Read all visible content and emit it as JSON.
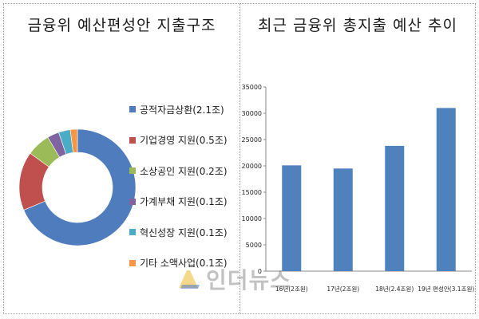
{
  "chart_data": [
    {
      "type": "pie",
      "title": "금융위 예산편성안 지출구조",
      "legend_position": "right",
      "labels": [
        "공적자금상환(2.1조)",
        "기업경영 지원(0.5조)",
        "소상공인 지원(0.2조)",
        "가계부채 지원(0.1조)",
        "혁신성장 지원(0.1조)",
        "기타 소액사업(0.1조)"
      ],
      "values": [
        2.1,
        0.5,
        0.2,
        0.1,
        0.1,
        0.06
      ],
      "colors": [
        "#4f7cbd",
        "#c0504d",
        "#9bbb59",
        "#8064a2",
        "#4bacc6",
        "#f79646"
      ]
    },
    {
      "type": "bar",
      "title": "최근 금융위 총지출 예산 추이",
      "categories": [
        "16년(2조원)",
        "17년(2조원)",
        "18년(2.4조원)",
        "19년 편성안(3.1조원)"
      ],
      "values": [
        20100,
        19500,
        23800,
        31000
      ],
      "ylim": [
        0,
        35000
      ],
      "yticks": [
        "0",
        "5000",
        "10000",
        "15000",
        "20000",
        "25000",
        "30000",
        "35000"
      ],
      "bar_color": "#4f81bd",
      "grid": false
    }
  ],
  "watermark": "인더뉴스"
}
